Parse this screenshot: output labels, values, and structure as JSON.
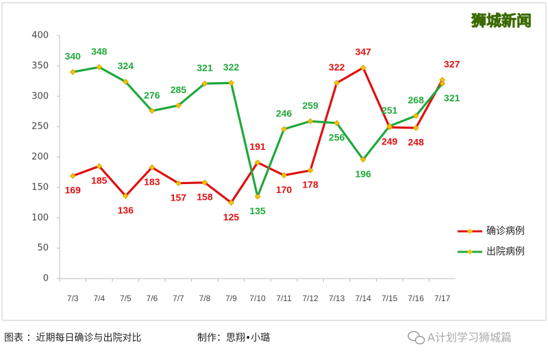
{
  "chart_data": {
    "type": "line",
    "watermark": "狮城新闻",
    "caption": "图表 ：近期每日确诊与出院对比",
    "credit": "制作：思翔•小璐",
    "source": "A计划学习狮城篇",
    "categories": [
      "7/3",
      "7/4",
      "7/5",
      "7/6",
      "7/7",
      "7/8",
      "7/9",
      "7/10",
      "7/11",
      "7/12",
      "7/13",
      "7/14",
      "7/15",
      "7/16",
      "7/17"
    ],
    "series": [
      {
        "name": "确诊病例",
        "color": "#e01010",
        "values": [
          169,
          185,
          136,
          183,
          157,
          158,
          125,
          191,
          170,
          178,
          322,
          347,
          249,
          248,
          327
        ]
      },
      {
        "name": "出院病例",
        "color": "#1fa83a",
        "values": [
          340,
          348,
          324,
          276,
          285,
          321,
          322,
          135,
          246,
          259,
          256,
          196,
          251,
          268,
          321
        ]
      }
    ],
    "marker_color": "#f2c200",
    "ylim": [
      0,
      400
    ],
    "yticks": [
      0,
      50,
      100,
      150,
      200,
      250,
      300,
      350,
      400
    ],
    "grid": false,
    "legend": "right"
  }
}
